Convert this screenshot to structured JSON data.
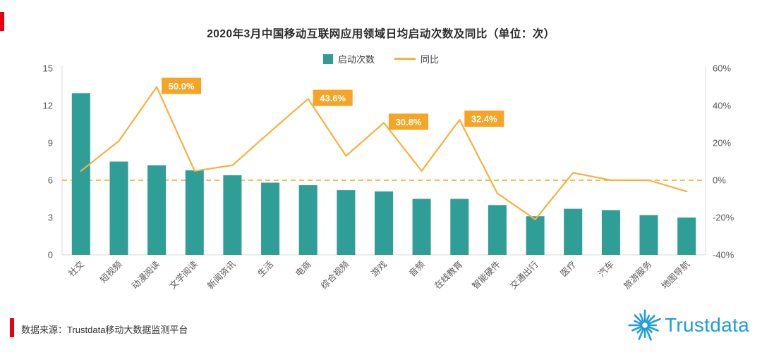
{
  "page": {
    "source_note": "数据来源：Trustdata移动大数据监测平台",
    "brand": "Trustdata",
    "accent_red": "#e60012",
    "brand_blue": "#1f9cd8"
  },
  "chart_data": {
    "type": "bar+line",
    "title": "2020年3月中国移动互联网应用领域日均启动次数及同比（单位：次）",
    "categories": [
      "社交",
      "短视频",
      "动漫阅读",
      "文学阅读",
      "新闻资讯",
      "生活",
      "电商",
      "综合视频",
      "游戏",
      "音频",
      "在线教育",
      "智能硬件",
      "交通出行",
      "医疗",
      "汽车",
      "旅游服务",
      "地图导航"
    ],
    "series": [
      {
        "name": "启动次数",
        "type": "bar",
        "axis": "left",
        "color": "#2f9e96",
        "values": [
          13.0,
          7.5,
          7.2,
          6.8,
          6.4,
          5.8,
          5.6,
          5.2,
          5.1,
          4.5,
          4.5,
          4.0,
          3.1,
          3.7,
          3.6,
          3.2,
          3.0
        ]
      },
      {
        "name": "同比",
        "type": "line",
        "axis": "right",
        "color": "#f7b13c",
        "values": [
          5,
          21,
          50.0,
          5,
          8,
          26,
          43.6,
          13,
          30.8,
          5,
          32.4,
          -7,
          -21,
          4,
          0,
          0,
          -6
        ],
        "point_labels": {
          "2": "50.0%",
          "6": "43.6%",
          "8": "30.8%",
          "10": "32.4%"
        }
      }
    ],
    "left_axis": {
      "min": 0,
      "max": 15,
      "ticks": [
        0,
        3,
        6,
        9,
        12,
        15
      ]
    },
    "right_axis": {
      "min": -40,
      "max": 60,
      "tick_values": [
        -40,
        -20,
        0,
        20,
        40,
        60
      ],
      "ticks": [
        "-40%",
        "-20%",
        "0%",
        "20%",
        "40%",
        "60%"
      ]
    },
    "zero_line": {
      "value": 0,
      "style": "dashed",
      "color": "#f5a623"
    },
    "label_box_color": "#f6a426",
    "legend_position": "top",
    "grid": false
  }
}
